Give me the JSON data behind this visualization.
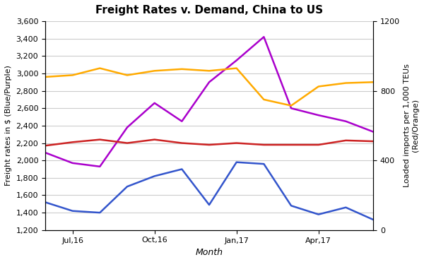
{
  "title": "Freight Rates v. Demand, China to US",
  "xlabel": "Month",
  "ylabel_left": "Freight rates in $ (Blue/Purple)",
  "ylabel_right": "Loaded imports per 1,000 TEUs\n(Red/Orange)",
  "x_tick_labels": [
    "Jul,16",
    "Oct,16",
    "Jan,17",
    "Apr,17"
  ],
  "x_tick_positions": [
    1,
    4,
    7,
    10
  ],
  "n_points": 13,
  "xlim": [
    0,
    12
  ],
  "blue_line": [
    1520,
    1420,
    1400,
    1700,
    1820,
    1900,
    1490,
    1980,
    1960,
    1480,
    1380,
    1460,
    1320
  ],
  "purple_line": [
    2090,
    1970,
    1930,
    2380,
    2660,
    2450,
    2900,
    3150,
    3420,
    2600,
    2520,
    2450,
    2330
  ],
  "orange_line": [
    2960,
    2980,
    3060,
    2980,
    3030,
    3050,
    3030,
    3060,
    2700,
    2630,
    2850,
    2890,
    2900
  ],
  "red_line": [
    2170,
    2210,
    2240,
    2200,
    2240,
    2200,
    2180,
    2200,
    2180,
    2180,
    2180,
    2230,
    2220
  ],
  "blue_color": "#3355cc",
  "purple_color": "#aa00cc",
  "orange_color": "#ffaa00",
  "red_color": "#cc2222",
  "ylim_left": [
    1200,
    3600
  ],
  "ylim_right": [
    0,
    1200
  ],
  "yticks_left": [
    1200,
    1400,
    1600,
    1800,
    2000,
    2200,
    2400,
    2600,
    2800,
    3000,
    3200,
    3400,
    3600
  ],
  "yticks_right": [
    0,
    400,
    800,
    1200
  ],
  "linewidth": 1.8,
  "background_color": "#ffffff",
  "grid_color": "#cccccc",
  "title_fontsize": 11,
  "label_fontsize": 8,
  "ylabel_fontsize": 8,
  "xlabel_fontsize": 9
}
